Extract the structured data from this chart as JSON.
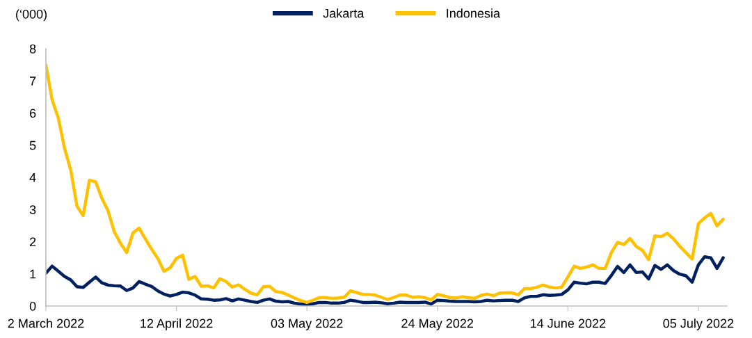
{
  "chart_data": {
    "type": "line",
    "ylabel": "(‘000)",
    "categories": [
      "2 March 2022",
      null,
      null,
      null,
      null,
      null,
      null,
      null,
      null,
      null,
      null,
      null,
      null,
      null,
      null,
      null,
      null,
      null,
      null,
      null,
      null,
      "12 April 2022",
      null,
      null,
      null,
      null,
      null,
      null,
      null,
      null,
      null,
      null,
      null,
      null,
      null,
      null,
      null,
      null,
      null,
      null,
      null,
      null,
      "03 May 2022",
      null,
      null,
      null,
      null,
      null,
      null,
      null,
      null,
      null,
      null,
      null,
      null,
      null,
      null,
      null,
      null,
      null,
      null,
      null,
      null,
      "24 May 2022",
      null,
      null,
      null,
      null,
      null,
      null,
      null,
      null,
      null,
      null,
      null,
      null,
      null,
      null,
      null,
      null,
      null,
      null,
      null,
      null,
      "14 June 2022",
      null,
      null,
      null,
      null,
      null,
      null,
      null,
      null,
      null,
      null,
      null,
      null,
      null,
      null,
      null,
      null,
      null,
      null,
      null,
      null,
      "05 July 2022",
      null,
      null,
      null,
      null
    ],
    "series": [
      {
        "name": "Jakarta",
        "color": "#002060",
        "values": [
          1.02,
          1.24,
          1.08,
          0.92,
          0.81,
          0.6,
          0.58,
          0.74,
          0.9,
          0.72,
          0.65,
          0.63,
          0.62,
          0.48,
          0.56,
          0.76,
          0.68,
          0.61,
          0.47,
          0.37,
          0.31,
          0.36,
          0.43,
          0.41,
          0.34,
          0.22,
          0.21,
          0.18,
          0.19,
          0.23,
          0.16,
          0.22,
          0.18,
          0.14,
          0.11,
          0.18,
          0.22,
          0.15,
          0.13,
          0.14,
          0.09,
          0.06,
          0.04,
          0.07,
          0.11,
          0.11,
          0.09,
          0.09,
          0.11,
          0.18,
          0.15,
          0.11,
          0.11,
          0.12,
          0.1,
          0.07,
          0.09,
          0.12,
          0.11,
          0.11,
          0.11,
          0.12,
          0.06,
          0.18,
          0.17,
          0.15,
          0.14,
          0.14,
          0.14,
          0.13,
          0.14,
          0.18,
          0.16,
          0.17,
          0.18,
          0.18,
          0.14,
          0.25,
          0.3,
          0.3,
          0.35,
          0.33,
          0.34,
          0.36,
          0.5,
          0.74,
          0.71,
          0.69,
          0.74,
          0.74,
          0.7,
          0.95,
          1.23,
          1.04,
          1.28,
          1.04,
          1.06,
          0.84,
          1.26,
          1.14,
          1.28,
          1.1,
          0.99,
          0.94,
          0.74,
          1.28,
          1.53,
          1.5,
          1.17,
          1.5
        ]
      },
      {
        "name": "Indonesia",
        "color": "#ffc000",
        "values": [
          7.5,
          6.41,
          5.84,
          4.9,
          4.22,
          3.1,
          2.81,
          3.91,
          3.86,
          3.35,
          2.96,
          2.31,
          1.95,
          1.66,
          2.27,
          2.42,
          2.09,
          1.77,
          1.48,
          1.08,
          1.19,
          1.48,
          1.58,
          0.83,
          0.92,
          0.61,
          0.63,
          0.56,
          0.85,
          0.76,
          0.59,
          0.66,
          0.52,
          0.4,
          0.35,
          0.6,
          0.61,
          0.45,
          0.42,
          0.34,
          0.25,
          0.17,
          0.11,
          0.18,
          0.26,
          0.26,
          0.24,
          0.25,
          0.27,
          0.47,
          0.42,
          0.36,
          0.36,
          0.34,
          0.27,
          0.2,
          0.27,
          0.34,
          0.34,
          0.27,
          0.29,
          0.26,
          0.19,
          0.36,
          0.32,
          0.26,
          0.25,
          0.29,
          0.26,
          0.24,
          0.33,
          0.37,
          0.32,
          0.4,
          0.41,
          0.41,
          0.35,
          0.54,
          0.54,
          0.58,
          0.65,
          0.59,
          0.56,
          0.59,
          0.9,
          1.24,
          1.17,
          1.21,
          1.28,
          1.17,
          1.17,
          1.66,
          1.98,
          1.91,
          2.1,
          1.85,
          1.73,
          1.44,
          2.18,
          2.16,
          2.26,
          2.09,
          1.86,
          1.66,
          1.46,
          2.56,
          2.74,
          2.88,
          2.49,
          2.7
        ]
      }
    ],
    "ylim": [
      0,
      8
    ],
    "yticks": [
      0,
      1,
      2,
      3,
      4,
      5,
      6,
      7,
      8
    ],
    "grid": false,
    "legend": "top",
    "line_style": "solid",
    "marker": "none"
  }
}
